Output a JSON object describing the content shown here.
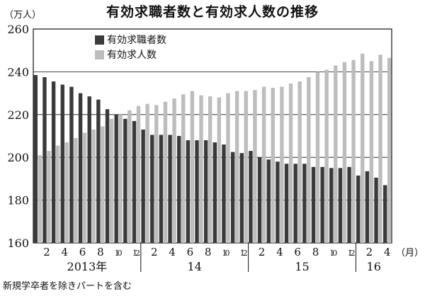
{
  "title": "有効求職者数と有効求人数の推移",
  "unit_label": "（万人）",
  "month_unit_label": "（月）",
  "footnote": "新規学卒者を除きパートを含む",
  "colors": {
    "jobseekers": "#3a3a3a",
    "openings": "#bdbdbd",
    "grid": "#111111"
  },
  "chart_data": {
    "type": "bar",
    "ylim": [
      160,
      260
    ],
    "yticks": [
      160,
      180,
      200,
      220,
      240,
      260
    ],
    "month_ticks": [
      "2",
      "4",
      "6",
      "8",
      "10",
      "12",
      "2",
      "4",
      "6",
      "8",
      "10",
      "12",
      "2",
      "4",
      "6",
      "8",
      "10",
      "12",
      "2",
      "4"
    ],
    "year_labels": [
      "2013年",
      "14",
      "15",
      "16"
    ],
    "legend": [
      "有効求職者数",
      "有効求人数"
    ],
    "series": [
      {
        "name": "有効求職者数",
        "values": [
          238.5,
          237.5,
          235.5,
          234,
          233,
          230,
          228.5,
          227,
          222.5,
          220,
          218,
          217,
          213,
          210.5,
          210.5,
          210.5,
          210,
          208,
          208,
          208,
          207,
          206,
          202.5,
          202,
          203,
          200,
          199,
          198,
          197,
          197,
          197,
          195.5,
          195.5,
          195,
          195,
          195.5,
          191.5,
          193.5,
          190.5,
          187
        ]
      },
      {
        "name": "有効求人数",
        "values": [
          201,
          203,
          205.5,
          207,
          209,
          211.5,
          213,
          214.5,
          218,
          220,
          222,
          224,
          225,
          224.5,
          226,
          227.5,
          229.5,
          231,
          229,
          228.5,
          228,
          230,
          231,
          231,
          231.5,
          233,
          232.5,
          233,
          234.5,
          235.5,
          237.5,
          240,
          241,
          243,
          244.5,
          245.5,
          248.5,
          245,
          248,
          246.5
        ]
      }
    ]
  }
}
